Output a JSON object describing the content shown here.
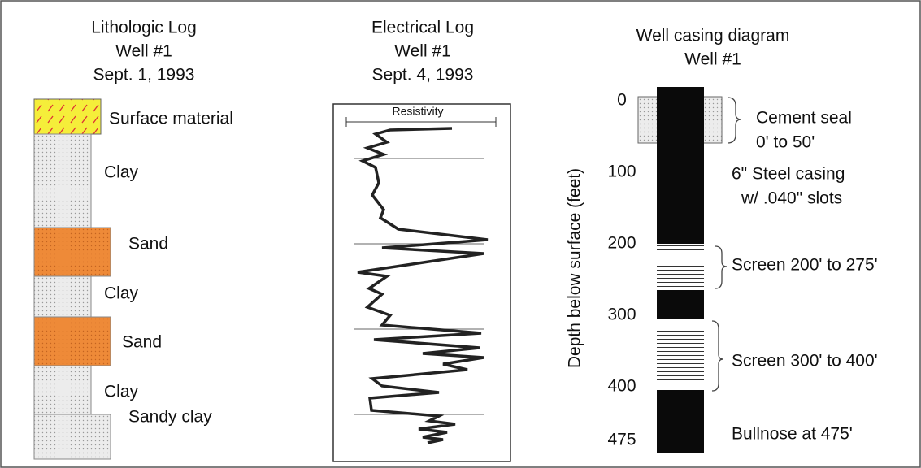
{
  "lithologic_log": {
    "title": [
      "Lithologic Log",
      "Well #1",
      "Sept. 1, 1993"
    ],
    "layers": [
      "Surface material",
      "Clay",
      "Sand",
      "Clay",
      "Sand",
      "Clay",
      "Sandy clay"
    ]
  },
  "electrical_log": {
    "title": [
      "Electrical Log",
      "Well #1",
      "Sept. 4, 1993"
    ],
    "curve_label": "Resistivity"
  },
  "well_casing": {
    "title": [
      "Well casing diagram",
      "Well #1"
    ],
    "axis_label": "Depth below surface (feet)",
    "depth_ticks": [
      0,
      100,
      200,
      300,
      400,
      475
    ],
    "labels": [
      "Cement seal",
      "0' to 50'",
      "6\" Steel casing",
      "w/ .040\" slots",
      "Screen 200' to 275'",
      "Screen 300' to 400'",
      "Bullnose at 475'"
    ]
  }
}
